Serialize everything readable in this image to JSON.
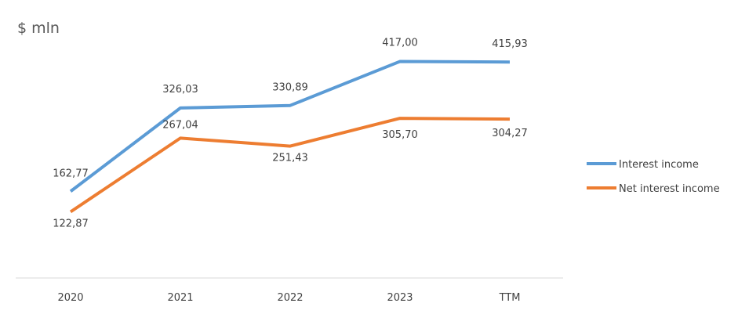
{
  "chart_data": {
    "type": "line",
    "unit_label": "$ mln",
    "categories": [
      "2020",
      "2021",
      "2022",
      "2023",
      "TTM"
    ],
    "series": [
      {
        "name": "Interest income",
        "color": "#5b9bd5",
        "values": [
          162.77,
          326.03,
          330.89,
          417.0,
          415.93
        ],
        "labels": [
          "162,77",
          "326,03",
          "330,89",
          "417,00",
          "415,93"
        ],
        "label_position": "above"
      },
      {
        "name": "Net interest income",
        "color": "#ed7d31",
        "values": [
          122.87,
          267.04,
          251.43,
          305.7,
          304.27
        ],
        "labels": [
          "122,87",
          "267,04",
          "251,43",
          "305,70",
          "304,27"
        ],
        "label_position": "mixed"
      }
    ],
    "ylim": [
      70,
      430
    ],
    "grid": false,
    "legend": "right",
    "axis_color": "#d9d9d9"
  }
}
